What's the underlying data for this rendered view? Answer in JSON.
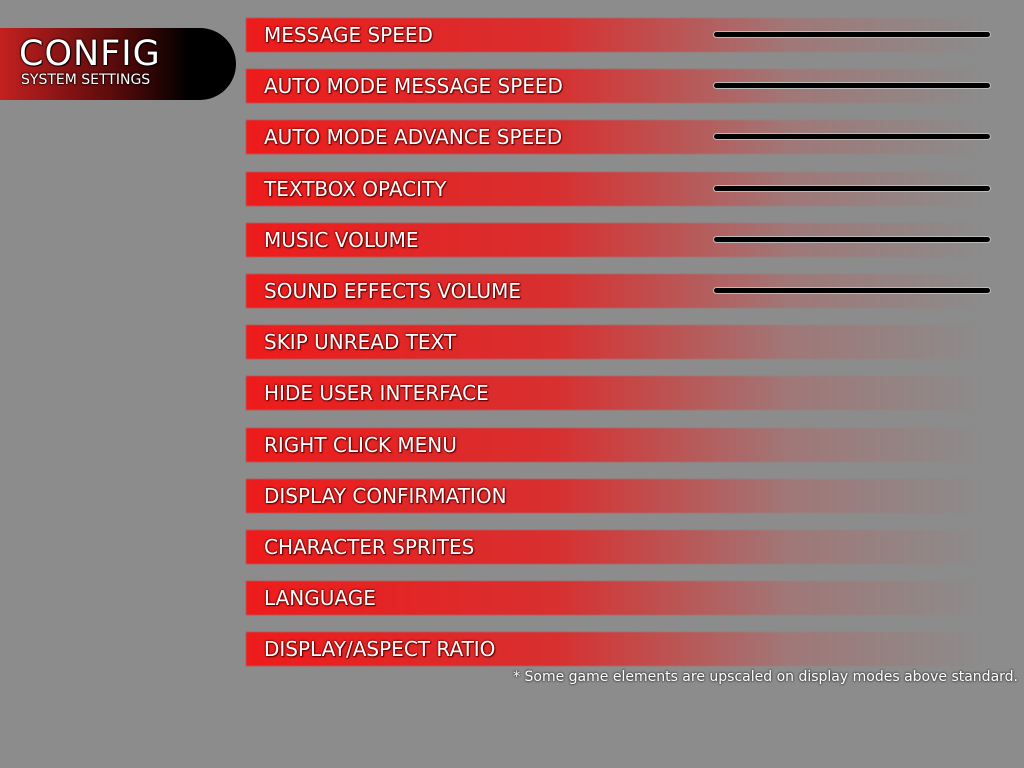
{
  "header": {
    "title": "CONFIG",
    "subtitle": "SYSTEM SETTINGS"
  },
  "settings": [
    {
      "label": "MESSAGE SPEED",
      "has_slider": true
    },
    {
      "label": "AUTO MODE MESSAGE SPEED",
      "has_slider": true
    },
    {
      "label": "AUTO MODE ADVANCE SPEED",
      "has_slider": true
    },
    {
      "label": "TEXTBOX OPACITY",
      "has_slider": true
    },
    {
      "label": "MUSIC VOLUME",
      "has_slider": true
    },
    {
      "label": "SOUND EFFECTS VOLUME",
      "has_slider": true
    },
    {
      "label": "SKIP UNREAD TEXT",
      "has_slider": false
    },
    {
      "label": "HIDE USER INTERFACE",
      "has_slider": false
    },
    {
      "label": "RIGHT CLICK MENU",
      "has_slider": false
    },
    {
      "label": "DISPLAY CONFIRMATION",
      "has_slider": false
    },
    {
      "label": "CHARACTER SPRITES",
      "has_slider": false
    },
    {
      "label": "LANGUAGE",
      "has_slider": false
    },
    {
      "label": "DISPLAY/ASPECT RATIO",
      "has_slider": false
    }
  ],
  "note": "* Some game elements are upscaled on display modes above standard.",
  "colors": {
    "background": "#8c8c8c",
    "accent": "#ee1c1c"
  }
}
